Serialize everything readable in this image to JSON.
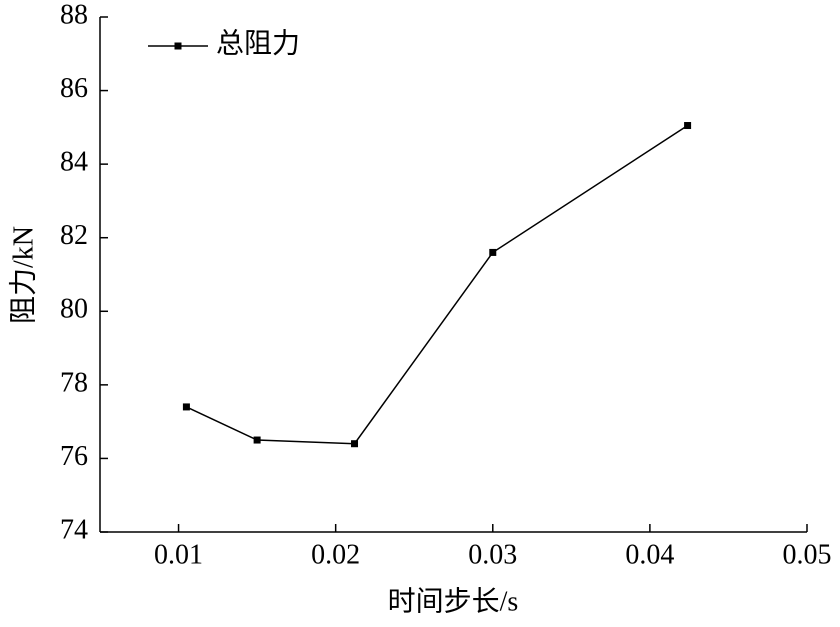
{
  "chart_data": {
    "type": "line",
    "x_label": "时间步长/s",
    "y_label": "阻力/kN",
    "x": [
      0.0105,
      0.015,
      0.0212,
      0.03,
      0.0424
    ],
    "series": [
      {
        "name": "总阻力",
        "color": "#000000",
        "values": [
          77.4,
          76.5,
          76.4,
          81.6,
          85.05
        ]
      }
    ],
    "xlim": [
      0.005,
      0.05
    ],
    "xticks": [
      0.01,
      0.02,
      0.03,
      0.04,
      0.05
    ],
    "ylim": [
      74,
      88
    ],
    "yticks": [
      74,
      76,
      78,
      80,
      82,
      84,
      86,
      88
    ],
    "legend": "upper left"
  }
}
